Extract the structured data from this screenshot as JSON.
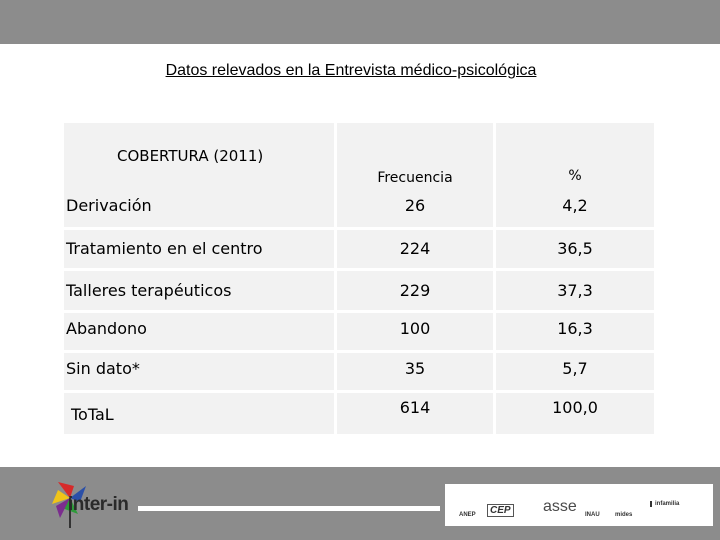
{
  "title": "Datos relevados en la Entrevista médico-psicológica",
  "table": {
    "group_label": "COBERTURA  (2011)",
    "col_headers": [
      "Frecuencia",
      "%"
    ],
    "rows": [
      {
        "label": "Derivación",
        "frecuencia": "26",
        "porcentaje": "4,2"
      },
      {
        "label": "Tratamiento en el centro",
        "frecuencia": "224",
        "porcentaje": "36,5"
      },
      {
        "label": "Talleres terapéuticos",
        "frecuencia": "229",
        "porcentaje": "37,3"
      },
      {
        "label": "Abandono",
        "frecuencia": "100",
        "porcentaje": "16,3"
      },
      {
        "label": "Sin dato*",
        "frecuencia": "35",
        "porcentaje": "5,7"
      },
      {
        "label": "ToTaL",
        "frecuencia": "614",
        "porcentaje": "100,0"
      }
    ]
  },
  "footer": {
    "left_logo": "inter-in",
    "partner_logos": [
      "ANEP",
      "CEP",
      "asse",
      "INAU",
      "mides",
      "infamilia"
    ],
    "colors": {
      "band": "#8c8c8c",
      "cell": "#f2f2f2",
      "logo_red": "#d62a2a",
      "logo_green": "#2e9a3a",
      "logo_blue": "#2a4fa8",
      "logo_yellow": "#f0c419",
      "logo_purple": "#7b2d8e"
    }
  }
}
